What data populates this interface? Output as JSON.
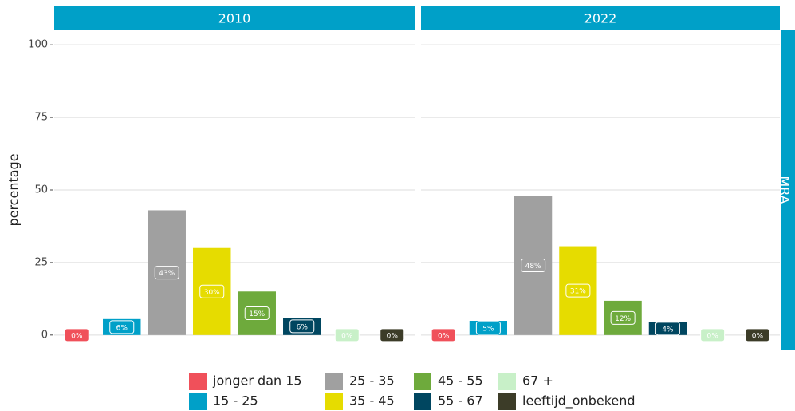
{
  "chart_data": [
    {
      "type": "bar",
      "title": "2010",
      "ylabel": "percentage",
      "categories": [
        "jonger dan 15",
        "15 - 25",
        "25 - 35",
        "35 - 45",
        "45 - 55",
        "55 - 67",
        "67 +",
        "leeftijd_onbekend"
      ],
      "colors": [
        "#f0505a",
        "#00a0c8",
        "#a0a0a0",
        "#e6dc00",
        "#6eaa3c",
        "#004660",
        "#c8f0c8",
        "#3c3c28"
      ],
      "values": [
        0,
        5.5,
        43,
        30,
        15,
        6,
        0,
        0
      ],
      "value_labels": [
        "0%",
        "6%",
        "43%",
        "30%",
        "15%",
        "6%",
        "0%",
        "0%"
      ],
      "ylim": [
        -5,
        105
      ],
      "yticks": [
        0,
        25,
        50,
        75,
        100
      ],
      "grid": true
    },
    {
      "type": "bar",
      "title": "2022",
      "categories": [
        "jonger dan 15",
        "15 - 25",
        "25 - 35",
        "35 - 45",
        "45 - 55",
        "55 - 67",
        "67 +",
        "leeftijd_onbekend"
      ],
      "colors": [
        "#f0505a",
        "#00a0c8",
        "#a0a0a0",
        "#e6dc00",
        "#6eaa3c",
        "#004660",
        "#c8f0c8",
        "#3c3c28"
      ],
      "values": [
        0,
        4.9,
        48,
        30.6,
        11.8,
        4.4,
        0,
        0
      ],
      "value_labels": [
        "0%",
        "5%",
        "48%",
        "31%",
        "12%",
        "4%",
        "0%",
        "0%"
      ],
      "ylim": [
        -5,
        105
      ],
      "yticks": [
        0,
        25,
        50,
        75,
        100
      ],
      "grid": true
    }
  ],
  "row_label": "MRA"
}
